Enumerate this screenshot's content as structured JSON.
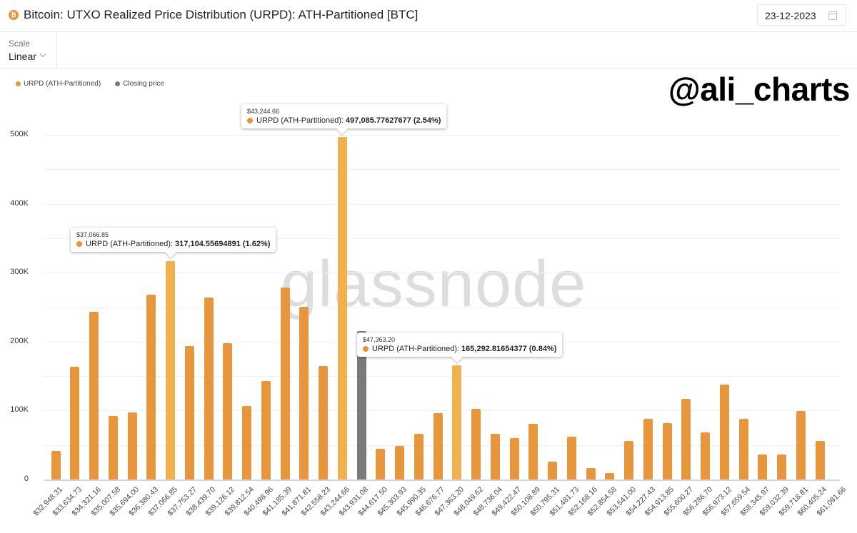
{
  "header": {
    "title": "Bitcoin: UTXO Realized Price Distribution (URPD): ATH-Partitioned [BTC]",
    "asset_icon": "bitcoin-icon",
    "date": "23-12-2023",
    "date_icon": "calendar-icon"
  },
  "controls": {
    "scale_label": "Scale",
    "scale_value": "Linear"
  },
  "legend": [
    {
      "label": "URPD (ATH-Partitioned)",
      "color": "#e8923a"
    },
    {
      "label": "Closing price",
      "color": "#7a7a7a"
    }
  ],
  "watermarks": {
    "handle": "@ali_charts",
    "brand": "glassnode"
  },
  "colors": {
    "bar": "#e8963c",
    "bar_highlight": "#f2b04e",
    "closing_price": "#7a7a7a"
  },
  "tooltips": [
    {
      "date": "$43,244.66",
      "series": "URPD (ATH-Partitioned):",
      "value": "497,085.77627677 (2.54%)"
    },
    {
      "date": "$37,066.85",
      "series": "URPD (ATH-Partitioned):",
      "value": "317,104.55694891 (1.62%)"
    },
    {
      "date": "$47,363.20",
      "series": "URPD (ATH-Partitioned):",
      "value": "165,292.81654377 (0.84%)"
    }
  ],
  "chart_data": {
    "type": "bar",
    "title": "Bitcoin: UTXO Realized Price Distribution (URPD): ATH-Partitioned [BTC]",
    "xlabel": "",
    "ylabel": "",
    "ylim": [
      0,
      540000
    ],
    "yticks": [
      "0",
      "100K",
      "200K",
      "300K",
      "400K",
      "500K"
    ],
    "grid": true,
    "legend_position": "top-left",
    "categories": [
      "$32,948.31",
      "$33,634.73",
      "$34,321.16",
      "$35,007.58",
      "$35,694.00",
      "$36,380.43",
      "$37,066.85",
      "$37,753.27",
      "$38,439.70",
      "$39,126.12",
      "$39,812.54",
      "$40,498.96",
      "$41,185.39",
      "$41,871.81",
      "$42,558.23",
      "$43,244.66",
      "$43,931.08",
      "$44,617.50",
      "$45,303.93",
      "$45,990.35",
      "$46,676.77",
      "$47,363.20",
      "$48,049.62",
      "$48,736.04",
      "$49,422.47",
      "$50,108.89",
      "$50,795.31",
      "$51,481.73",
      "$52,168.16",
      "$52,854.58",
      "$53,541.00",
      "$54,227.43",
      "$54,913.85",
      "$55,600.27",
      "$56,286.70",
      "$56,973.12",
      "$57,659.54",
      "$58,345.97",
      "$59,032.39",
      "$59,718.81",
      "$60,405.24",
      "$61,091.66"
    ],
    "series": [
      {
        "name": "URPD (ATH-Partitioned)",
        "values": [
          41000,
          164000,
          243000,
          92000,
          97000,
          268000,
          317104.56,
          194000,
          264000,
          198000,
          107000,
          143000,
          278000,
          251000,
          165000,
          497085.78,
          null,
          44000,
          49000,
          66000,
          96000,
          165292.82,
          103000,
          66000,
          60000,
          81000,
          26000,
          62000,
          17000,
          9000,
          56000,
          88000,
          82000,
          117000,
          68000,
          138000,
          88000,
          36000,
          36000,
          99000,
          56000,
          0
        ]
      },
      {
        "name": "Closing price",
        "values": [
          null,
          null,
          null,
          null,
          null,
          null,
          null,
          null,
          null,
          null,
          null,
          null,
          null,
          null,
          null,
          null,
          215000,
          null,
          null,
          null,
          null,
          null,
          null,
          null,
          null,
          null,
          null,
          null,
          null,
          null,
          null,
          null,
          null,
          null,
          null,
          null,
          null,
          null,
          null,
          null,
          null,
          null
        ]
      }
    ],
    "highlighted": [
      "$37,066.85",
      "$43,244.66",
      "$47,363.20"
    ],
    "annotations": [
      "glassnode",
      "@ali_charts"
    ]
  }
}
